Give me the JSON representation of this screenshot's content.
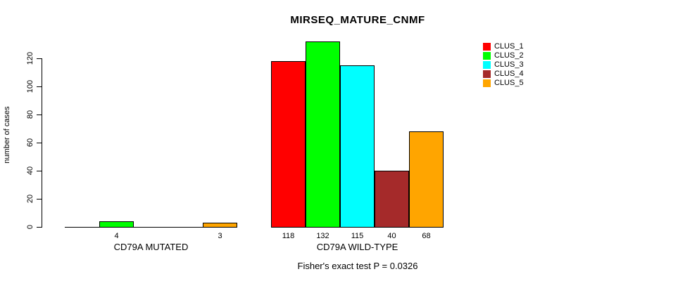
{
  "chart_data": {
    "type": "bar",
    "title": "MIRSEQ_MATURE_CNMF",
    "ylabel": "number of cases",
    "xlabel": "",
    "ylim": [
      0,
      120
    ],
    "yticks": [
      0,
      20,
      40,
      60,
      80,
      100,
      120
    ],
    "grid": false,
    "legend_position": "right",
    "categories": [
      "CD79A MUTATED",
      "CD79A WILD-TYPE"
    ],
    "series": [
      {
        "name": "CLUS_1",
        "color": "#FF0000",
        "values": [
          0,
          118
        ]
      },
      {
        "name": "CLUS_2",
        "color": "#00FF00",
        "values": [
          4,
          132
        ]
      },
      {
        "name": "CLUS_3",
        "color": "#00FFFF",
        "values": [
          0,
          115
        ]
      },
      {
        "name": "CLUS_4",
        "color": "#A52A2A",
        "values": [
          0,
          40
        ]
      },
      {
        "name": "CLUS_5",
        "color": "#FFA500",
        "values": [
          3,
          68
        ]
      }
    ],
    "bar_value_labels": [
      [
        "",
        "4",
        "",
        "",
        "3"
      ],
      [
        "118",
        "132",
        "115",
        "40",
        "68"
      ]
    ],
    "footnote": "Fisher's exact test P = 0.0326",
    "axis_color": "#000000",
    "bar_border_color": "#000000"
  }
}
